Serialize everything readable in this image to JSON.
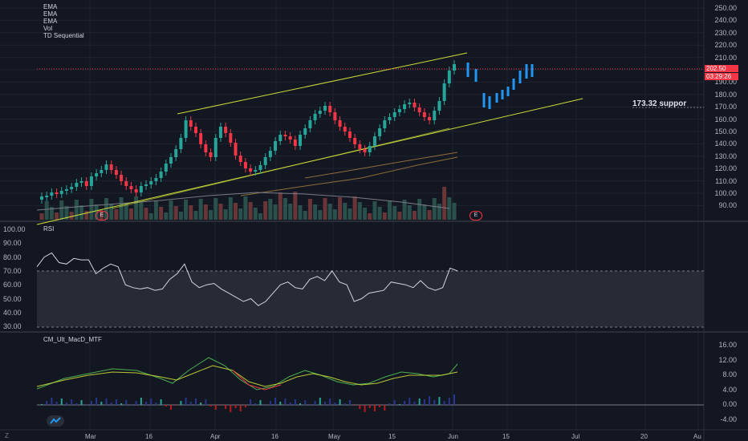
{
  "main_pane": {
    "indicators": [
      "EMA",
      "EMA",
      "EMA",
      "Vol",
      "TD Sequential"
    ],
    "price_axis": [
      "250.00",
      "240.00",
      "230.00",
      "220.00",
      "210.00",
      "200.00",
      "190.00",
      "180.00",
      "170.00",
      "160.00",
      "150.00",
      "140.00",
      "130.00",
      "120.00",
      "110.00",
      "100.00",
      "90.00"
    ],
    "last_price": "202.50",
    "countdown": "03:29:26",
    "support_label": "173.32 suppor",
    "earnings_marker": "E"
  },
  "rsi_pane": {
    "title": "RSI",
    "axis": [
      "100.00",
      "90.00",
      "80.00",
      "70.00",
      "60.00",
      "50.00",
      "40.00",
      "30.00"
    ],
    "values": [
      73,
      80,
      83,
      76,
      75,
      79,
      78,
      78,
      68,
      72,
      75,
      73,
      60,
      58,
      57,
      58,
      56,
      57,
      64,
      68,
      75,
      62,
      58,
      60,
      61,
      57,
      54,
      51,
      48,
      50,
      45,
      48,
      54,
      60,
      62,
      58,
      57,
      64,
      66,
      63,
      70,
      62,
      60,
      48,
      50,
      54,
      55,
      56,
      62,
      61,
      60,
      58,
      63,
      58,
      56,
      58,
      72,
      70
    ]
  },
  "macd_pane": {
    "title": "CM_Ult_MacD_MTF",
    "axis": [
      "16.00",
      "12.00",
      "8.00",
      "4.00",
      "0.00",
      "-4.00"
    ]
  },
  "x_axis": {
    "labels": [
      "Mar",
      "16",
      "Apr",
      "16",
      "May",
      "15",
      "Jun",
      "15",
      "Jul",
      "20",
      "Au"
    ],
    "corner": "Z"
  },
  "colors": {
    "background": "#131722",
    "up": "#26a69a",
    "down": "#f23645",
    "projection": "#2196f3",
    "channel": "#cddc39",
    "rsi_line": "#d1d4dc",
    "macd": "#4caf50",
    "signal": "#f23645"
  }
}
